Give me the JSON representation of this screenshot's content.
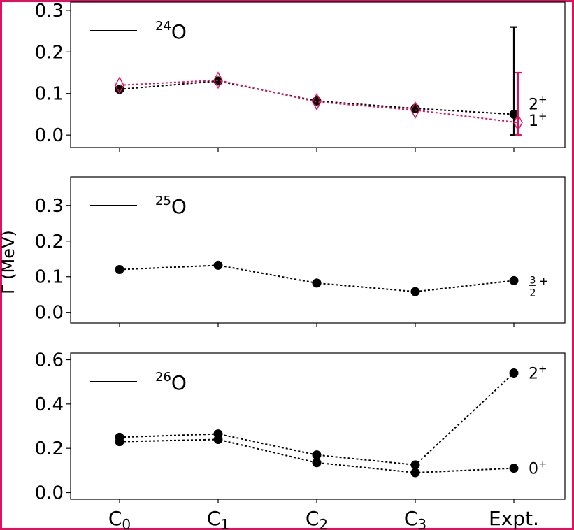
{
  "chart_data": {
    "type": "line",
    "ylabel": "Γ (MeV)",
    "categories": [
      "C0",
      "C1",
      "C2",
      "C3",
      "Expt."
    ],
    "category_labels": [
      {
        "base": "C",
        "sub": "0"
      },
      {
        "base": "C",
        "sub": "1"
      },
      {
        "base": "C",
        "sub": "2"
      },
      {
        "base": "C",
        "sub": "3"
      },
      {
        "base": "Expt.",
        "sub": ""
      }
    ],
    "colors": {
      "black": "#000000",
      "red": "#e0115f",
      "frame": "#e0115f"
    },
    "panels": [
      {
        "nucleus": {
          "mass": "24",
          "symbol": "O"
        },
        "ylim": [
          -0.03,
          0.32
        ],
        "yticks": [
          "0.0",
          "0.1",
          "0.2",
          "0.3"
        ],
        "yticks_values": [
          0,
          0.1,
          0.2,
          0.3
        ],
        "series": [
          {
            "label_base": "2",
            "label_sup": "+",
            "color": "#000000",
            "marker": "circle",
            "values": [
              0.11,
              0.13,
              0.082,
              0.064,
              0.05
            ],
            "errors": [
              null,
              null,
              null,
              null,
              [
                0.0,
                0.26
              ]
            ]
          },
          {
            "label_base": "1",
            "label_sup": "+",
            "color": "#e0115f",
            "marker": "diamond",
            "values": [
              0.12,
              0.132,
              0.08,
              0.06,
              0.03
            ],
            "errors": [
              null,
              null,
              null,
              null,
              [
                0.0,
                0.15
              ]
            ]
          }
        ]
      },
      {
        "nucleus": {
          "mass": "25",
          "symbol": "O"
        },
        "ylim": [
          -0.03,
          0.38
        ],
        "yticks": [
          "0.0",
          "0.1",
          "0.2",
          "0.3"
        ],
        "yticks_values": [
          0,
          0.1,
          0.2,
          0.3
        ],
        "series": [
          {
            "label_frac_num": "3",
            "label_frac_den": "2",
            "label_sup": "+",
            "color": "#000000",
            "marker": "circle",
            "values": [
              0.12,
              0.132,
              0.082,
              0.058,
              0.089
            ]
          }
        ]
      },
      {
        "nucleus": {
          "mass": "26",
          "symbol": "O"
        },
        "ylim": [
          -0.03,
          0.63
        ],
        "yticks": [
          "0.0",
          "0.2",
          "0.4",
          "0.6"
        ],
        "yticks_values": [
          0,
          0.2,
          0.4,
          0.6
        ],
        "series": [
          {
            "label_base": "2",
            "label_sup": "+",
            "color": "#000000",
            "marker": "circle",
            "values": [
              0.25,
              0.265,
              0.17,
              0.125,
              0.54
            ]
          },
          {
            "label_base": "0",
            "label_sup": "+",
            "color": "#000000",
            "marker": "circle",
            "values": [
              0.23,
              0.24,
              0.135,
              0.09,
              0.11
            ]
          }
        ]
      }
    ]
  }
}
